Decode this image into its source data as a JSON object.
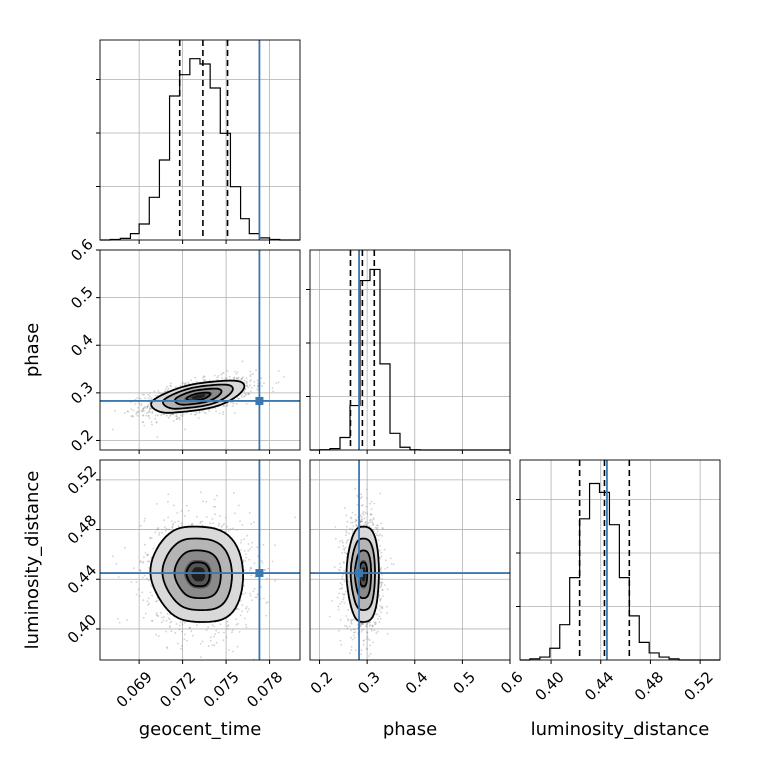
{
  "chart_data": {
    "type": "corner",
    "parameters": [
      "geocent_time",
      "phase",
      "luminosity_distance"
    ],
    "axis_labels": {
      "geocent_time": "geocent_time",
      "phase": "phase",
      "luminosity_distance": "luminosity_distance"
    },
    "ranges": {
      "geocent_time": [
        0.0663,
        0.0801
      ],
      "phase": [
        0.18,
        0.6
      ],
      "luminosity_distance": [
        0.375,
        0.536
      ]
    },
    "ticks": {
      "geocent_time": [
        {
          "value": 0.069,
          "label": "0.069"
        },
        {
          "value": 0.072,
          "label": "0.072"
        },
        {
          "value": 0.075,
          "label": "0.075"
        },
        {
          "value": 0.078,
          "label": "0.078"
        }
      ],
      "phase": [
        {
          "value": 0.2,
          "label": "0.2"
        },
        {
          "value": 0.3,
          "label": "0.3"
        },
        {
          "value": 0.4,
          "label": "0.4"
        },
        {
          "value": 0.5,
          "label": "0.5"
        },
        {
          "value": 0.6,
          "label": "0.6"
        }
      ],
      "luminosity_distance": [
        {
          "value": 0.4,
          "label": "0.40"
        },
        {
          "value": 0.44,
          "label": "0.44"
        },
        {
          "value": 0.48,
          "label": "0.48"
        },
        {
          "value": 0.52,
          "label": "0.52"
        }
      ]
    },
    "injection": {
      "geocent_time": 0.0773,
      "phase": 0.283,
      "luminosity_distance": 0.445
    },
    "quantiles": {
      "geocent_time": [
        0.0718,
        0.0734,
        0.0751
      ],
      "phase": [
        0.265,
        0.29,
        0.315
      ],
      "luminosity_distance": [
        0.423,
        0.443,
        0.463
      ]
    },
    "histograms": {
      "geocent_time": {
        "edges": [
          0.0663,
          0.067,
          0.0677,
          0.0684,
          0.069,
          0.0697,
          0.0704,
          0.0711,
          0.0718,
          0.0725,
          0.0732,
          0.0739,
          0.0746,
          0.0753,
          0.076,
          0.0766,
          0.0773,
          0.078,
          0.0787,
          0.0794,
          0.0801
        ],
        "counts": [
          0,
          1,
          3,
          12,
          30,
          80,
          150,
          270,
          310,
          340,
          330,
          285,
          200,
          100,
          40,
          12,
          4,
          1,
          0,
          0
        ],
        "ymax": 375
      },
      "phase": {
        "edges": [
          0.18,
          0.201,
          0.222,
          0.243,
          0.264,
          0.285,
          0.306,
          0.327,
          0.348,
          0.369,
          0.39,
          0.411,
          0.432,
          0.453,
          0.474,
          0.495,
          0.516,
          0.537,
          0.558,
          0.579,
          0.6
        ],
        "counts": [
          0,
          1,
          5,
          45,
          160,
          610,
          650,
          310,
          60,
          10,
          1,
          0,
          0,
          0,
          0,
          0,
          0,
          0,
          0,
          0
        ],
        "ymax": 720
      },
      "luminosity_distance": {
        "edges": [
          0.375,
          0.383,
          0.391,
          0.399,
          0.407,
          0.415,
          0.423,
          0.431,
          0.439,
          0.447,
          0.455,
          0.463,
          0.471,
          0.479,
          0.487,
          0.495,
          0.503,
          0.511,
          0.519,
          0.527,
          0.536
        ],
        "counts": [
          0,
          2,
          5,
          20,
          60,
          140,
          240,
          300,
          285,
          230,
          140,
          75,
          30,
          12,
          5,
          2,
          0,
          0,
          0,
          0
        ],
        "ymax": 340
      }
    },
    "posterior_2d": {
      "phase_vs_geocent_time": {
        "mean": [
          0.0731,
          0.292
        ],
        "sigma": [
          0.0016,
          0.017
        ],
        "rho": 0.55
      },
      "luminosity_distance_vs_geocent_time": {
        "mean": [
          0.0731,
          0.444
        ],
        "sigma": [
          0.0016,
          0.02
        ],
        "rho": -0.05
      },
      "luminosity_distance_vs_phase": {
        "mean": [
          0.292,
          0.444
        ],
        "sigma": [
          0.017,
          0.02
        ],
        "rho": 0.0
      }
    },
    "contour_levels_sigma": [
      0.5,
      1.0,
      1.5,
      2.0
    ],
    "grid": true
  }
}
